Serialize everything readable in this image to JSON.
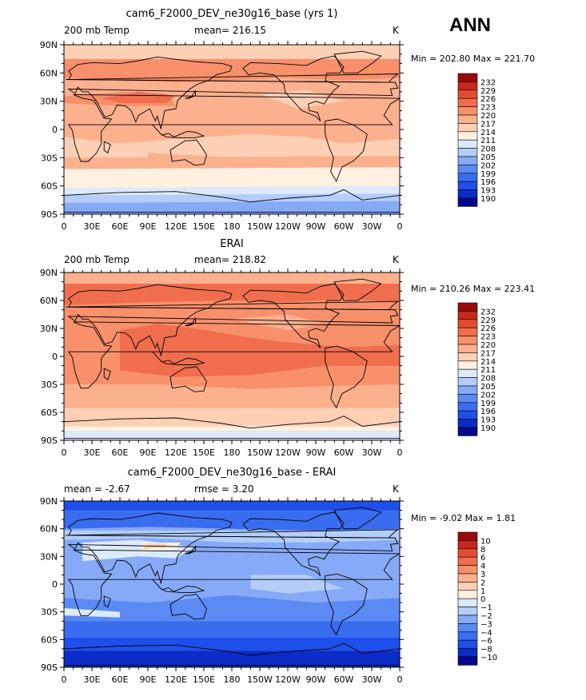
{
  "season": "ANN",
  "colorbar_colors": {
    "abs": [
      "#08088c",
      "#0b2cc8",
      "#1f4fea",
      "#3a6cf0",
      "#5b8af4",
      "#86aaf7",
      "#b4cdfa",
      "#dceafc",
      "#fff0df",
      "#fdd0b5",
      "#fbb08e",
      "#f7906b",
      "#f06e4d",
      "#e44c30",
      "#c8281a",
      "#9b0a0a"
    ],
    "diff": [
      "#08088c",
      "#0b2cc8",
      "#1f4fea",
      "#3a6cf0",
      "#5b8af4",
      "#86aaf7",
      "#b4cdfa",
      "#dceafc",
      "#fff0df",
      "#fdd0b5",
      "#fbb08e",
      "#f7906b",
      "#f06e4d",
      "#e44c30",
      "#c8281a",
      "#9b0a0a"
    ]
  },
  "panels": [
    {
      "title": "cam6_F2000_DEV_ne30g16_base (yrs 1)",
      "left_label": "200 mb Temp",
      "center_label": "mean= 216.15",
      "units": "K",
      "minmax": "Min = 202.80 Max = 221.70"
    },
    {
      "title": "ERAI",
      "left_label": "200 mb Temp",
      "center_label": "mean= 218.82",
      "units": "K",
      "minmax": "Min = 210.26 Max = 223.41"
    },
    {
      "title": "cam6_F2000_DEV_ne30g16_base - ERAI",
      "left_label": "mean =   -2.67",
      "center_label": "rmse =    3.20",
      "units": "K",
      "minmax": "Min =  -9.02 Max =   1.81"
    }
  ],
  "chart_data": [
    {
      "type": "heatmap",
      "variable": "200 mb Temp",
      "units": "K",
      "x_ticks": [
        "0",
        "30E",
        "60E",
        "90E",
        "120E",
        "150E",
        "180",
        "150W",
        "120W",
        "90W",
        "60W",
        "30W",
        "0"
      ],
      "y_ticks": [
        "90N",
        "60N",
        "30N",
        "0",
        "30S",
        "60S",
        "90S"
      ],
      "colorbar_levels": [
        "232",
        "229",
        "226",
        "223",
        "220",
        "217",
        "214",
        "211",
        "208",
        "205",
        "202",
        "199",
        "196",
        "193",
        "190"
      ],
      "mean": 216.15,
      "min": 202.8,
      "max": 221.7
    },
    {
      "type": "heatmap",
      "variable": "200 mb Temp",
      "units": "K",
      "x_ticks": [
        "0",
        "30E",
        "60E",
        "90E",
        "120E",
        "150E",
        "180",
        "150W",
        "120W",
        "90W",
        "60W",
        "30W",
        "0"
      ],
      "y_ticks": [
        "90N",
        "60N",
        "30N",
        "0",
        "30S",
        "60S",
        "90S"
      ],
      "colorbar_levels": [
        "232",
        "229",
        "226",
        "223",
        "220",
        "217",
        "214",
        "211",
        "208",
        "205",
        "202",
        "199",
        "196",
        "193",
        "190"
      ],
      "mean": 218.82,
      "min": 210.26,
      "max": 223.41
    },
    {
      "type": "heatmap",
      "variable": "200 mb Temp difference",
      "units": "K",
      "x_ticks": [
        "0",
        "30E",
        "60E",
        "90E",
        "120E",
        "150E",
        "180",
        "150W",
        "120W",
        "90W",
        "60W",
        "30W",
        "0"
      ],
      "y_ticks": [
        "90N",
        "60N",
        "30N",
        "0",
        "30S",
        "60S",
        "90S"
      ],
      "colorbar_levels": [
        "10",
        "8",
        "6",
        "4",
        "3",
        "2",
        "1",
        "0",
        "−1",
        "−2",
        "−3",
        "−4",
        "−6",
        "−8",
        "−10"
      ],
      "mean": -2.67,
      "rmse": 3.2,
      "min": -9.02,
      "max": 1.81
    }
  ]
}
